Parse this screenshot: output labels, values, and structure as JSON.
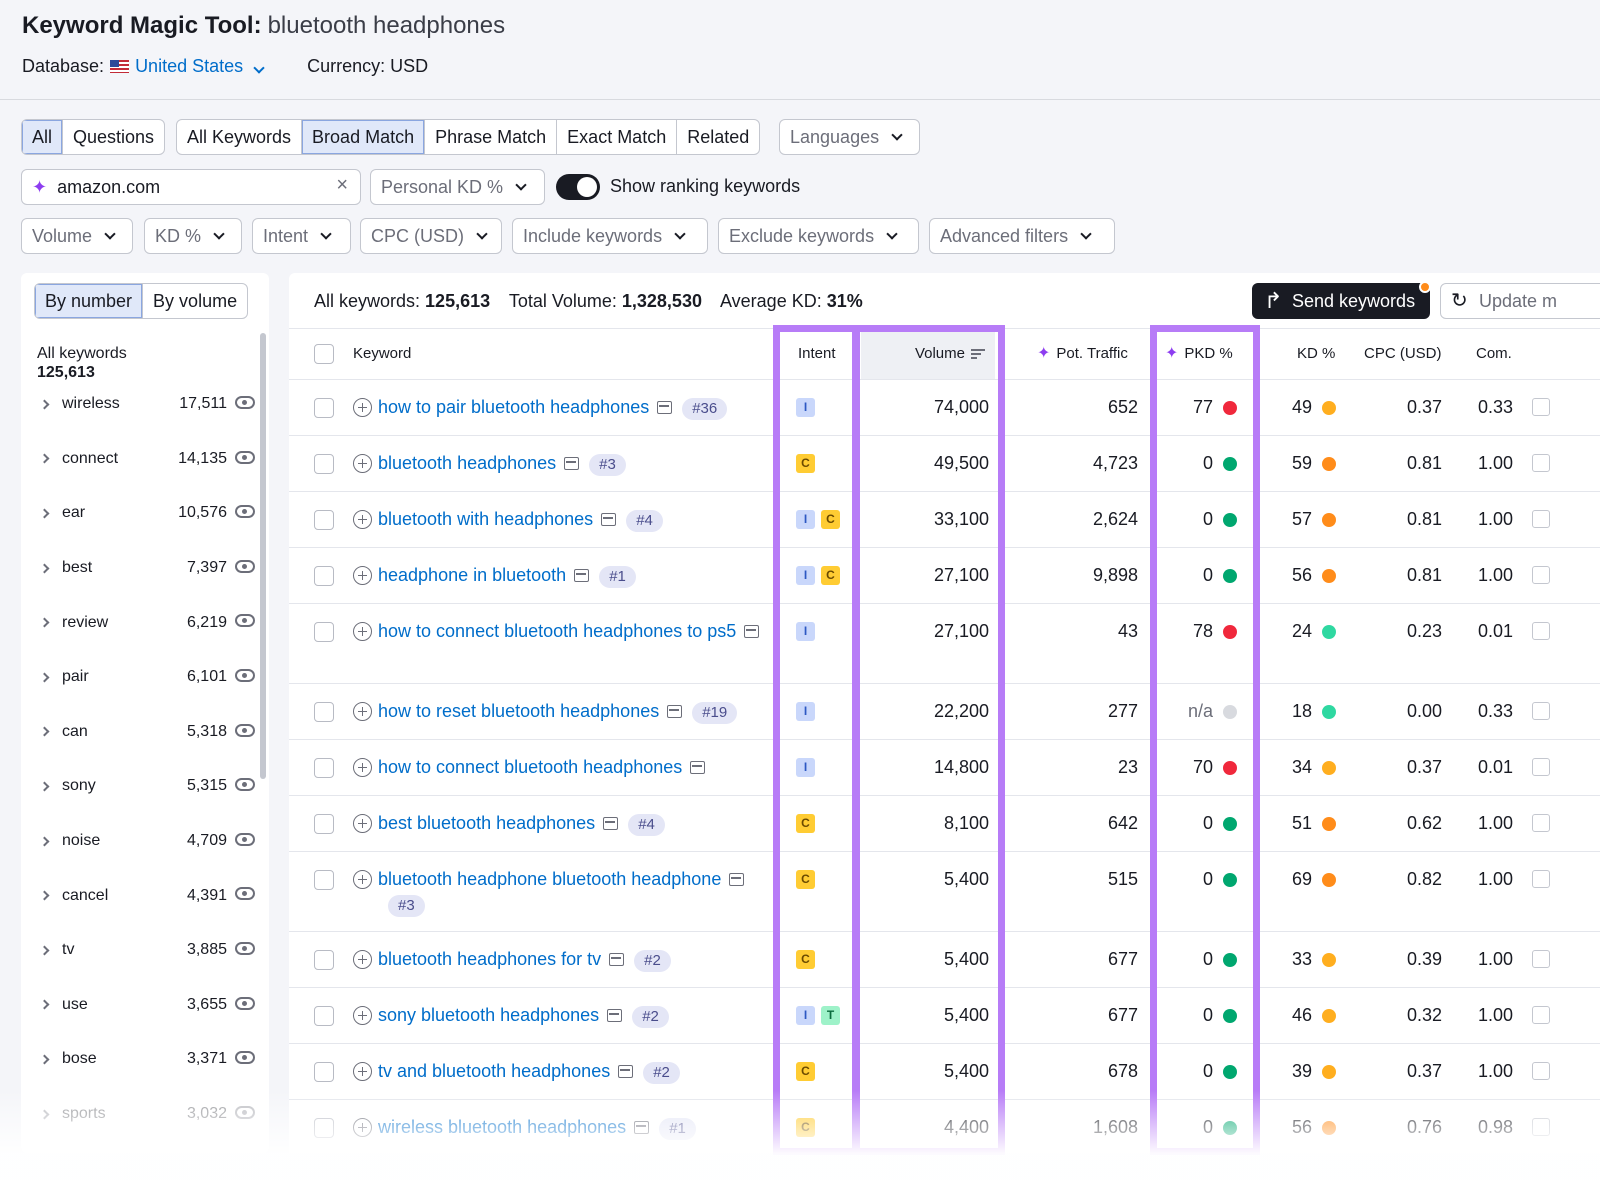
{
  "header": {
    "tool_title": "Keyword Magic Tool:",
    "query": "bluetooth headphones",
    "database_label": "Database:",
    "database_value": "United States",
    "currency": "Currency: USD"
  },
  "filters": {
    "scope_tabs": [
      "All",
      "Questions"
    ],
    "match_tabs": [
      "All Keywords",
      "Broad Match",
      "Phrase Match",
      "Exact Match",
      "Related"
    ],
    "languages": "Languages",
    "domain_value": "amazon.com",
    "personal_kd": "Personal KD %",
    "ranking_toggle_label": "Show ranking keywords",
    "dropdowns": [
      "Volume",
      "KD %",
      "Intent",
      "CPC (USD)",
      "Include keywords",
      "Exclude keywords",
      "Advanced filters"
    ]
  },
  "sidebar": {
    "tabs": [
      "By number",
      "By volume"
    ],
    "all_label": "All keywords",
    "all_count": "125,613",
    "groups": [
      {
        "label": "wireless",
        "count": "17,511"
      },
      {
        "label": "connect",
        "count": "14,135"
      },
      {
        "label": "ear",
        "count": "10,576"
      },
      {
        "label": "best",
        "count": "7,397"
      },
      {
        "label": "review",
        "count": "6,219"
      },
      {
        "label": "pair",
        "count": "6,101"
      },
      {
        "label": "can",
        "count": "5,318"
      },
      {
        "label": "sony",
        "count": "5,315"
      },
      {
        "label": "noise",
        "count": "4,709"
      },
      {
        "label": "cancel",
        "count": "4,391"
      },
      {
        "label": "tv",
        "count": "3,885"
      },
      {
        "label": "use",
        "count": "3,655"
      },
      {
        "label": "bose",
        "count": "3,371"
      },
      {
        "label": "sports",
        "count": "3,032"
      }
    ]
  },
  "summary": {
    "all_label": "All keywords:",
    "all_value": "125,613",
    "volume_label": "Total Volume:",
    "volume_value": "1,328,530",
    "kd_label": "Average KD:",
    "kd_value": "31%",
    "send_button": "Send keywords",
    "update_button": "Update m"
  },
  "table": {
    "columns": {
      "keyword": "Keyword",
      "intent": "Intent",
      "volume": "Volume",
      "pot_traffic": "Pot. Traffic",
      "pkd": "PKD %",
      "kd": "KD %",
      "cpc": "CPC (USD)",
      "com": "Com."
    },
    "rows": [
      {
        "keyword": "how to pair bluetooth headphones",
        "rank": "#36",
        "intent": [
          "I"
        ],
        "volume": "74,000",
        "traffic": "652",
        "pkd": "77",
        "pkd_color": "#f0283c",
        "kd": "49",
        "kd_color": "#ffae1f",
        "cpc": "0.37",
        "com": "0.33"
      },
      {
        "keyword": "bluetooth headphones",
        "rank": "#3",
        "intent": [
          "C"
        ],
        "volume": "49,500",
        "traffic": "4,723",
        "pkd": "0",
        "pkd_color": "#00a76f",
        "kd": "59",
        "kd_color": "#ff8c1a",
        "cpc": "0.81",
        "com": "1.00"
      },
      {
        "keyword": "bluetooth with headphones",
        "rank": "#4",
        "intent": [
          "I",
          "C"
        ],
        "volume": "33,100",
        "traffic": "2,624",
        "pkd": "0",
        "pkd_color": "#00a76f",
        "kd": "57",
        "kd_color": "#ff8c1a",
        "cpc": "0.81",
        "com": "1.00"
      },
      {
        "keyword": "headphone in bluetooth",
        "rank": "#1",
        "intent": [
          "I",
          "C"
        ],
        "volume": "27,100",
        "traffic": "9,898",
        "pkd": "0",
        "pkd_color": "#00a76f",
        "kd": "56",
        "kd_color": "#ff8c1a",
        "cpc": "0.81",
        "com": "1.00"
      },
      {
        "keyword": "how to connect bluetooth headphones to ps5",
        "rank": "",
        "intent": [
          "I"
        ],
        "volume": "27,100",
        "traffic": "43",
        "pkd": "78",
        "pkd_color": "#f0283c",
        "kd": "24",
        "kd_color": "#2fd8a1",
        "cpc": "0.23",
        "com": "0.01"
      },
      {
        "keyword": "how to reset bluetooth headphones",
        "rank": "#19",
        "intent": [
          "I"
        ],
        "volume": "22,200",
        "traffic": "277",
        "pkd": "n/a",
        "pkd_color": "#d8dadf",
        "kd": "18",
        "kd_color": "#2fd8a1",
        "cpc": "0.00",
        "com": "0.33"
      },
      {
        "keyword": "how to connect bluetooth headphones",
        "rank": "",
        "intent": [
          "I"
        ],
        "volume": "14,800",
        "traffic": "23",
        "pkd": "70",
        "pkd_color": "#f0283c",
        "kd": "34",
        "kd_color": "#ffae1f",
        "cpc": "0.37",
        "com": "0.01"
      },
      {
        "keyword": "best bluetooth headphones",
        "rank": "#4",
        "intent": [
          "C"
        ],
        "volume": "8,100",
        "traffic": "642",
        "pkd": "0",
        "pkd_color": "#00a76f",
        "kd": "51",
        "kd_color": "#ff8c1a",
        "cpc": "0.62",
        "com": "1.00"
      },
      {
        "keyword": "bluetooth headphone bluetooth headphone",
        "rank": "#3",
        "intent": [
          "C"
        ],
        "volume": "5,400",
        "traffic": "515",
        "pkd": "0",
        "pkd_color": "#00a76f",
        "kd": "69",
        "kd_color": "#ff8c1a",
        "cpc": "0.82",
        "com": "1.00"
      },
      {
        "keyword": "bluetooth headphones for tv",
        "rank": "#2",
        "intent": [
          "C"
        ],
        "volume": "5,400",
        "traffic": "677",
        "pkd": "0",
        "pkd_color": "#00a76f",
        "kd": "33",
        "kd_color": "#ffae1f",
        "cpc": "0.39",
        "com": "1.00"
      },
      {
        "keyword": "sony bluetooth headphones",
        "rank": "#2",
        "intent": [
          "I",
          "T"
        ],
        "volume": "5,400",
        "traffic": "677",
        "pkd": "0",
        "pkd_color": "#00a76f",
        "kd": "46",
        "kd_color": "#ffae1f",
        "cpc": "0.32",
        "com": "1.00"
      },
      {
        "keyword": "tv and bluetooth headphones",
        "rank": "#2",
        "intent": [
          "C"
        ],
        "volume": "5,400",
        "traffic": "678",
        "pkd": "0",
        "pkd_color": "#00a76f",
        "kd": "39",
        "kd_color": "#ffae1f",
        "cpc": "0.37",
        "com": "1.00"
      },
      {
        "keyword": "wireless bluetooth headphones",
        "rank": "#1",
        "intent": [
          "C"
        ],
        "volume": "4,400",
        "traffic": "1,608",
        "pkd": "0",
        "pkd_color": "#00a76f",
        "kd": "56",
        "kd_color": "#ff8c1a",
        "cpc": "0.76",
        "com": "0.98"
      }
    ]
  },
  "colors": {
    "highlight": "#b77cf7",
    "link": "#006dca",
    "accent_dark": "#191b23"
  }
}
